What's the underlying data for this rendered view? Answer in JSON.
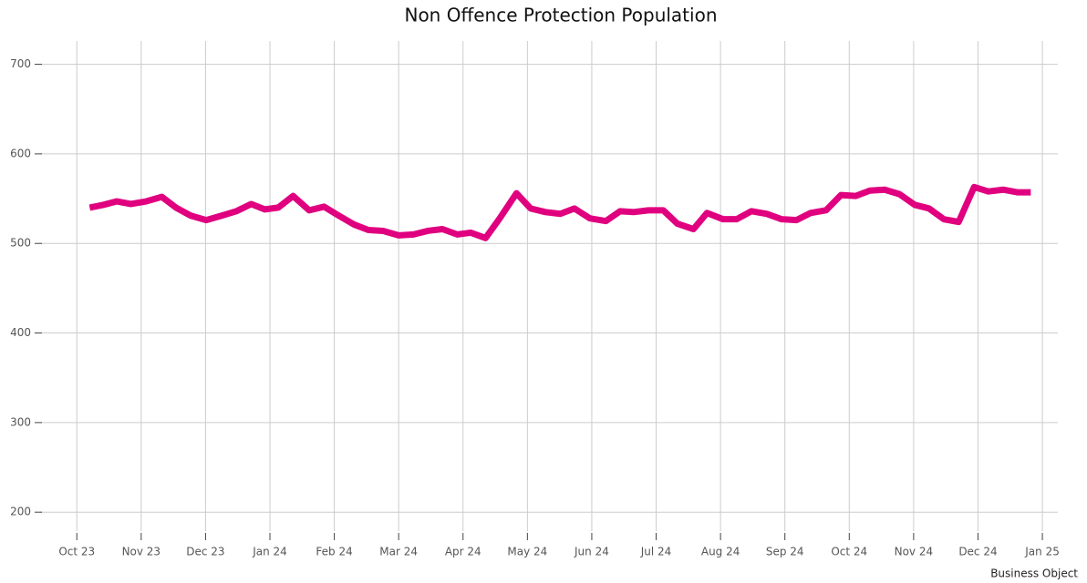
{
  "chart_data": {
    "type": "line",
    "title": "Non Offence Protection Population",
    "footer": "Business Object",
    "series": [
      {
        "name": "Non Offence Protection Population",
        "color": "#e0007f",
        "x": [
          0.2,
          0.41,
          0.62,
          0.84,
          1.08,
          1.32,
          1.54,
          1.77,
          2.01,
          2.25,
          2.48,
          2.71,
          2.92,
          3.13,
          3.36,
          3.61,
          3.84,
          4.07,
          4.31,
          4.53,
          4.76,
          5.0,
          5.23,
          5.45,
          5.68,
          5.91,
          6.12,
          6.35,
          6.57,
          6.83,
          7.05,
          7.28,
          7.51,
          7.73,
          7.97,
          8.22,
          8.44,
          8.65,
          8.88,
          9.11,
          9.33,
          9.58,
          9.79,
          10.04,
          10.25,
          10.48,
          10.72,
          10.95,
          11.18,
          11.4,
          11.64,
          11.87,
          12.1,
          12.32,
          12.55,
          12.78,
          13.02,
          13.24,
          13.47,
          13.7,
          13.94,
          14.16,
          14.39,
          14.62,
          14.82
        ],
        "values": [
          540,
          543,
          547,
          544,
          547,
          552,
          540,
          531,
          526,
          531,
          536,
          544,
          538,
          540,
          553,
          537,
          541,
          531,
          521,
          515,
          514,
          509,
          510,
          514,
          516,
          510,
          512,
          506,
          528,
          556,
          539,
          535,
          533,
          539,
          528,
          525,
          536,
          535,
          537,
          537,
          522,
          516,
          534,
          527,
          527,
          536,
          533,
          527,
          526,
          534,
          537,
          554,
          553,
          559,
          560,
          555,
          543,
          539,
          527,
          524,
          563,
          558,
          560,
          557,
          557
        ]
      }
    ],
    "xlim": [
      -0.57,
      15.24
    ],
    "xticks": [
      {
        "value": 0,
        "label": "Oct 23"
      },
      {
        "value": 1,
        "label": "Nov 23"
      },
      {
        "value": 2,
        "label": "Dec 23"
      },
      {
        "value": 3,
        "label": "Jan 24"
      },
      {
        "value": 4,
        "label": "Feb 24"
      },
      {
        "value": 5,
        "label": "Mar 24"
      },
      {
        "value": 6,
        "label": "Apr 24"
      },
      {
        "value": 7,
        "label": "May 24"
      },
      {
        "value": 8,
        "label": "Jun 24"
      },
      {
        "value": 9,
        "label": "Jul 24"
      },
      {
        "value": 10,
        "label": "Aug 24"
      },
      {
        "value": 11,
        "label": "Sep 24"
      },
      {
        "value": 12,
        "label": "Oct 24"
      },
      {
        "value": 13,
        "label": "Nov 24"
      },
      {
        "value": 14,
        "label": "Dec 24"
      },
      {
        "value": 15,
        "label": "Jan 25"
      }
    ],
    "ylim": [
      187,
      726
    ],
    "yticks": [
      200,
      300,
      400,
      500,
      600,
      700
    ],
    "grid": true
  }
}
